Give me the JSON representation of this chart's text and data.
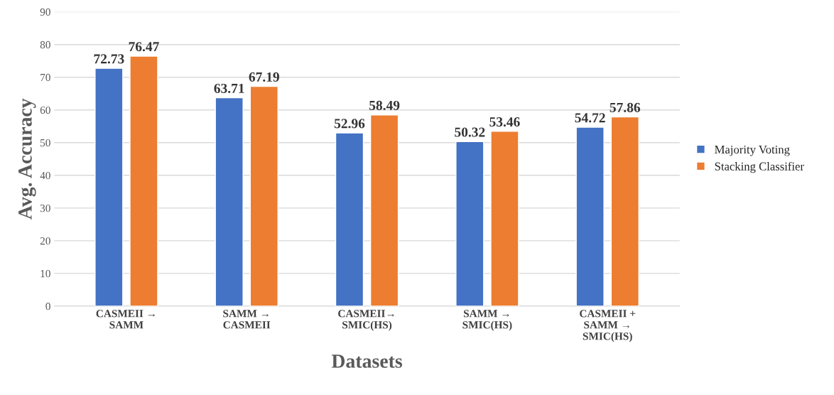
{
  "chart_data": {
    "type": "bar",
    "xlabel": "Datasets",
    "ylabel": "Avg. Accuracy",
    "categories": [
      "CASMEII →\nSAMM",
      "SAMM →\nCASMEII",
      "CASMEII→\nSMIC(HS)",
      "SAMM →\nSMIC(HS)",
      "CASMEII +\nSAMM →\nSMIC(HS)"
    ],
    "series": [
      {
        "name": "Majority Voting",
        "color": "#4472c4",
        "values": [
          72.73,
          63.71,
          52.96,
          50.32,
          54.72
        ]
      },
      {
        "name": "Stacking Classifier",
        "color": "#ed7d31",
        "values": [
          76.47,
          67.19,
          58.49,
          53.46,
          57.86
        ]
      }
    ],
    "ylim": [
      0,
      90
    ],
    "yticks": [
      0,
      10,
      20,
      30,
      40,
      50,
      60,
      70,
      80,
      90
    ],
    "grid": "y",
    "legend": "right",
    "data_labels": true
  }
}
